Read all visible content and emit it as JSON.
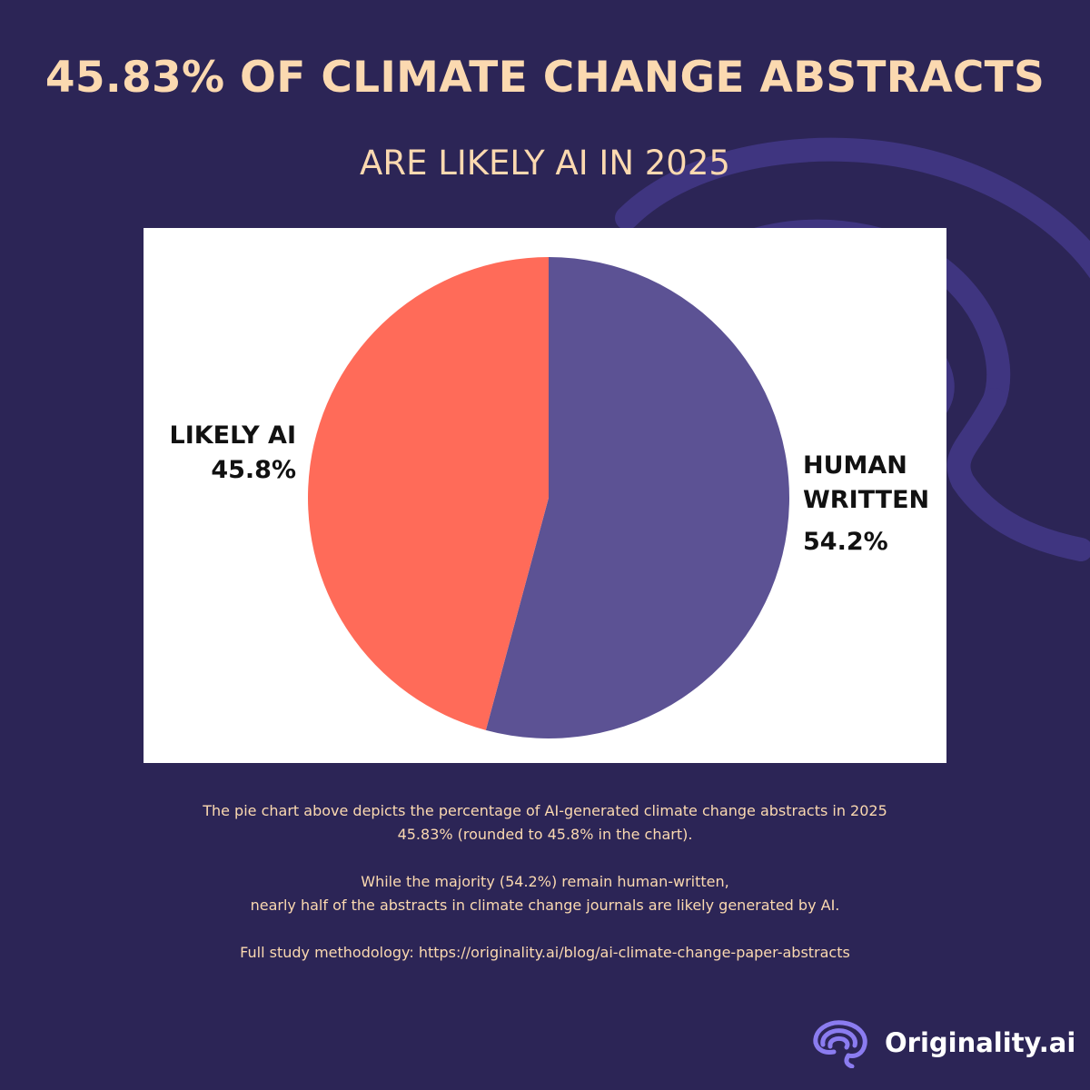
{
  "header": {
    "title": "45.83% OF CLIMATE CHANGE ABSTRACTS",
    "subtitle": "ARE LIKELY AI IN 2025"
  },
  "chart_data": {
    "type": "pie",
    "title": "",
    "slices": [
      {
        "label_lines": [
          "LIKELY AI"
        ],
        "value_label": "45.8%",
        "value": 45.8,
        "color": "#ff6b59"
      },
      {
        "label_lines": [
          "HUMAN",
          "WRITTEN"
        ],
        "value_label": "54.2%",
        "value": 54.2,
        "color": "#5c5294"
      }
    ]
  },
  "caption": {
    "line1": "The pie chart above depicts the percentage of AI-generated climate change abstracts in 2025",
    "line2": "45.83% (rounded to 45.8% in the chart).",
    "line3": "While the majority (54.2%) remain human-written,",
    "line4": "nearly half of the abstracts in climate change journals are likely generated by AI.",
    "line5": "Full study methodology: https://originality.ai/blog/ai-climate-change-paper-abstracts"
  },
  "brand": {
    "name": "Originality.ai",
    "icon": "brain-icon",
    "icon_color": "#8b7cf0"
  },
  "colors": {
    "background": "#2c2556",
    "accent_text": "#fbd9b0",
    "swirl": "#3f3580"
  }
}
